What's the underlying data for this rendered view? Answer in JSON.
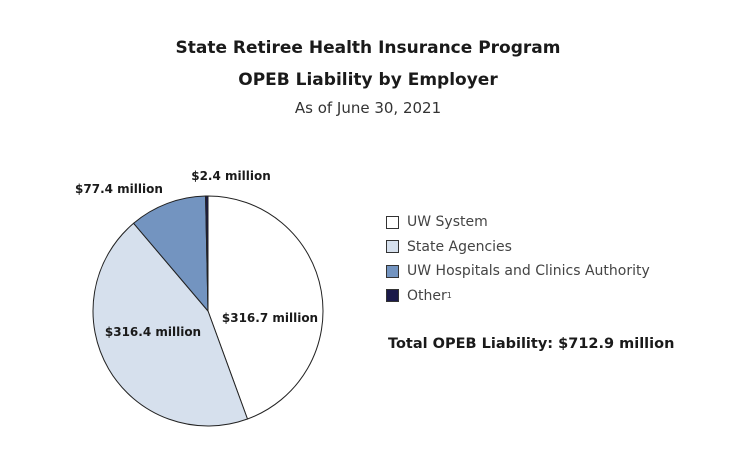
{
  "chart_data": {
    "type": "pie",
    "title": "State Retiree Health Insurance Program",
    "subtitle_line": "OPEB Liability by Employer",
    "date": "As of June 30, 2021",
    "unit": "million USD",
    "start": "12 o'clock, clockwise",
    "slices": [
      {
        "name": "UW System",
        "value": 316.7,
        "label": "$316.7 million",
        "color": "#ffffff"
      },
      {
        "name": "State Agencies",
        "value": 316.4,
        "label": "$316.4 million",
        "color": "#d6e0ed"
      },
      {
        "name": "UW Hospitals and Clinics Authority",
        "value": 77.4,
        "label": "$77.4 million",
        "color": "#7394c0"
      },
      {
        "name": "Other",
        "footnote": "1",
        "value": 2.4,
        "label": "$2.4 million",
        "color": "#1b1a4a"
      }
    ],
    "legend_position": "right",
    "total": "Total OPEB Liability: $712.9 million"
  }
}
